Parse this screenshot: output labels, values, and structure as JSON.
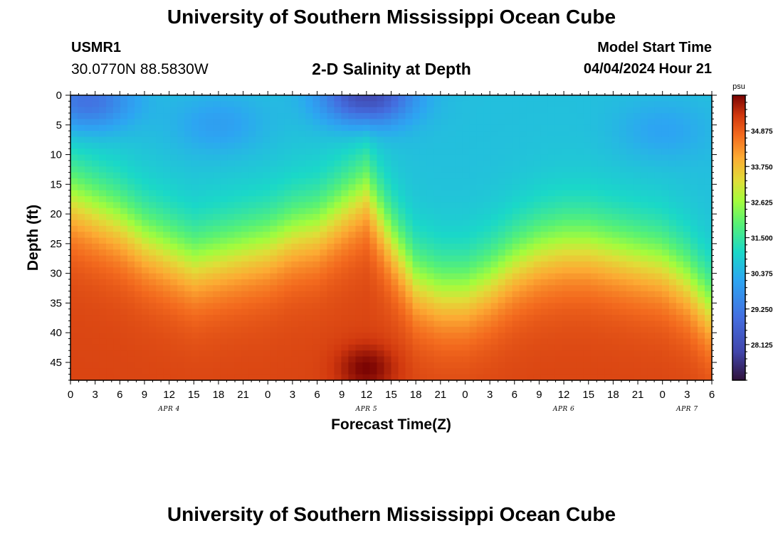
{
  "header": {
    "title": "University of Southern Mississippi Ocean Cube",
    "station_id": "USMR1",
    "coordinates": "30.0770N  88.5830W",
    "subtitle": "2-D Salinity at Depth",
    "model_start_label": "Model Start Time",
    "model_start_value": "04/04/2024 Hour 21"
  },
  "footer": {
    "title": "University of Southern Mississippi Ocean Cube"
  },
  "chart_data": {
    "type": "heatmap",
    "title": "2-D Salinity at Depth",
    "xlabel": "Forecast Time(Z)",
    "ylabel": "Depth (ft)",
    "x_hours_from_apr4_00z": [
      0,
      78
    ],
    "x_tick_labels": [
      "0",
      "3",
      "6",
      "9",
      "12",
      "15",
      "18",
      "21",
      "0",
      "3",
      "6",
      "9",
      "12",
      "15",
      "18",
      "21",
      "0",
      "3",
      "6",
      "9",
      "12",
      "15",
      "18",
      "21",
      "0",
      "3",
      "6"
    ],
    "date_labels": [
      {
        "label": "APR 4",
        "hour": 12
      },
      {
        "label": "APR 5",
        "hour": 36
      },
      {
        "label": "APR 6",
        "hour": 60
      },
      {
        "label": "APR 7",
        "hour": 75
      }
    ],
    "y_ticks": [
      0,
      5,
      10,
      15,
      20,
      25,
      30,
      35,
      40,
      45
    ],
    "ylim": [
      0,
      48
    ],
    "y_inverted": true,
    "colorbar": {
      "unit": "psu",
      "range": [
        27.0,
        36.0
      ],
      "tick_labels": [
        "34.875",
        "33.750",
        "32.625",
        "31.500",
        "30.375",
        "29.250",
        "28.125"
      ]
    },
    "front_midpoint_depth_ft": [
      {
        "hour": 0,
        "depth": 17
      },
      {
        "hour": 3,
        "depth": 19
      },
      {
        "hour": 6,
        "depth": 21
      },
      {
        "hour": 9,
        "depth": 24
      },
      {
        "hour": 12,
        "depth": 26
      },
      {
        "hour": 15,
        "depth": 28
      },
      {
        "hour": 18,
        "depth": 27
      },
      {
        "hour": 21,
        "depth": 26
      },
      {
        "hour": 24,
        "depth": 25
      },
      {
        "hour": 27,
        "depth": 23
      },
      {
        "hour": 30,
        "depth": 22
      },
      {
        "hour": 33,
        "depth": 19
      },
      {
        "hour": 36,
        "depth": 16
      },
      {
        "hour": 39,
        "depth": 24
      },
      {
        "hour": 42,
        "depth": 31
      },
      {
        "hour": 45,
        "depth": 33
      },
      {
        "hour": 48,
        "depth": 33
      },
      {
        "hour": 51,
        "depth": 31
      },
      {
        "hour": 54,
        "depth": 28
      },
      {
        "hour": 57,
        "depth": 26
      },
      {
        "hour": 60,
        "depth": 25
      },
      {
        "hour": 63,
        "depth": 25
      },
      {
        "hour": 66,
        "depth": 26
      },
      {
        "hour": 69,
        "depth": 27
      },
      {
        "hour": 72,
        "depth": 28
      },
      {
        "hour": 75,
        "depth": 31
      },
      {
        "hour": 78,
        "depth": 36
      }
    ],
    "surface_low_salinity_patches": [
      {
        "hour": 2,
        "depth": 1,
        "value": 29.0
      },
      {
        "hour": 18,
        "depth": 5,
        "value": 30.0
      },
      {
        "hour": 36,
        "depth": 0,
        "value": 28.0
      },
      {
        "hour": 72,
        "depth": 6,
        "value": 30.1
      }
    ],
    "bottom_high_salinity_patches": [
      {
        "hour": 36,
        "depth": 46,
        "value": 36.0
      }
    ],
    "surface_salinity_psu": 30.6,
    "bottom_salinity_psu": 35.2
  }
}
